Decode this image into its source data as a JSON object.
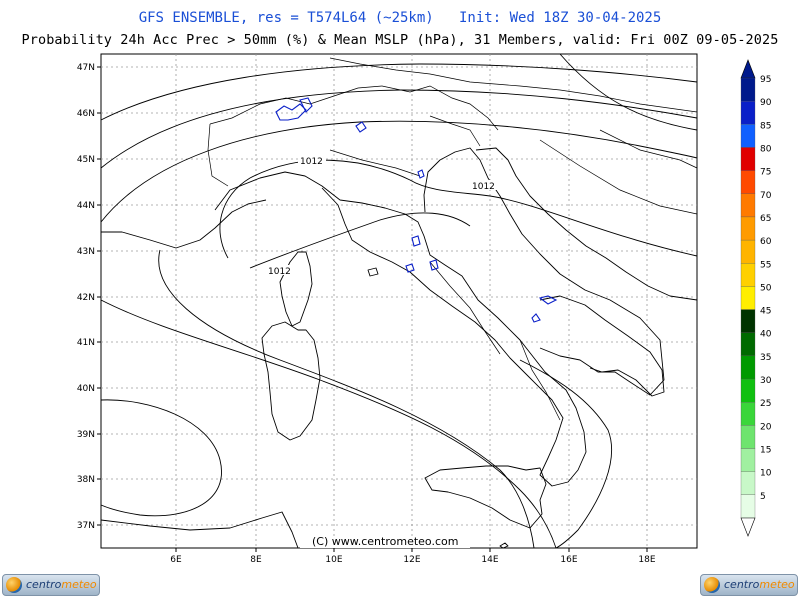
{
  "header": {
    "line1": "GFS ENSEMBLE, res = T574L64 (~25km)   Init: Wed 18Z 30-04-2025",
    "line2": "Probability 24h Acc Prec > 50mm (%) & Mean MSLP (hPa), 31 Members, valid: Fri 00Z 09-05-2025"
  },
  "map": {
    "lat_labels": [
      "47N",
      "46N",
      "45N",
      "44N",
      "43N",
      "42N",
      "41N",
      "40N",
      "39N",
      "38N",
      "37N"
    ],
    "lon_labels": [
      "6E",
      "8E",
      "10E",
      "12E",
      "14E",
      "16E",
      "18E"
    ],
    "isobar_labels": [
      "1012",
      "1012",
      "1012"
    ],
    "copyright": "(C)  www.centrometeo.com"
  },
  "legend": {
    "levels": [
      "95",
      "90",
      "85",
      "80",
      "75",
      "70",
      "65",
      "60",
      "55",
      "50",
      "45",
      "40",
      "35",
      "30",
      "25",
      "20",
      "15",
      "10",
      "5"
    ],
    "colors": [
      "#001a8c",
      "#0a1fc8",
      "#1060ff",
      "#e00000",
      "#ff4a00",
      "#ff7a00",
      "#ff9b00",
      "#ffb400",
      "#ffd000",
      "#ffee00",
      "#003300",
      "#006a00",
      "#009a00",
      "#10c010",
      "#3ad63a",
      "#6ee46e",
      "#a0f0a0",
      "#c8f8c8",
      "#e6fde6"
    ]
  },
  "logos": {
    "left": {
      "text_a": "centro",
      "text_b": "meteo"
    },
    "right": {
      "text_a": "centro",
      "text_b": "meteo"
    }
  }
}
